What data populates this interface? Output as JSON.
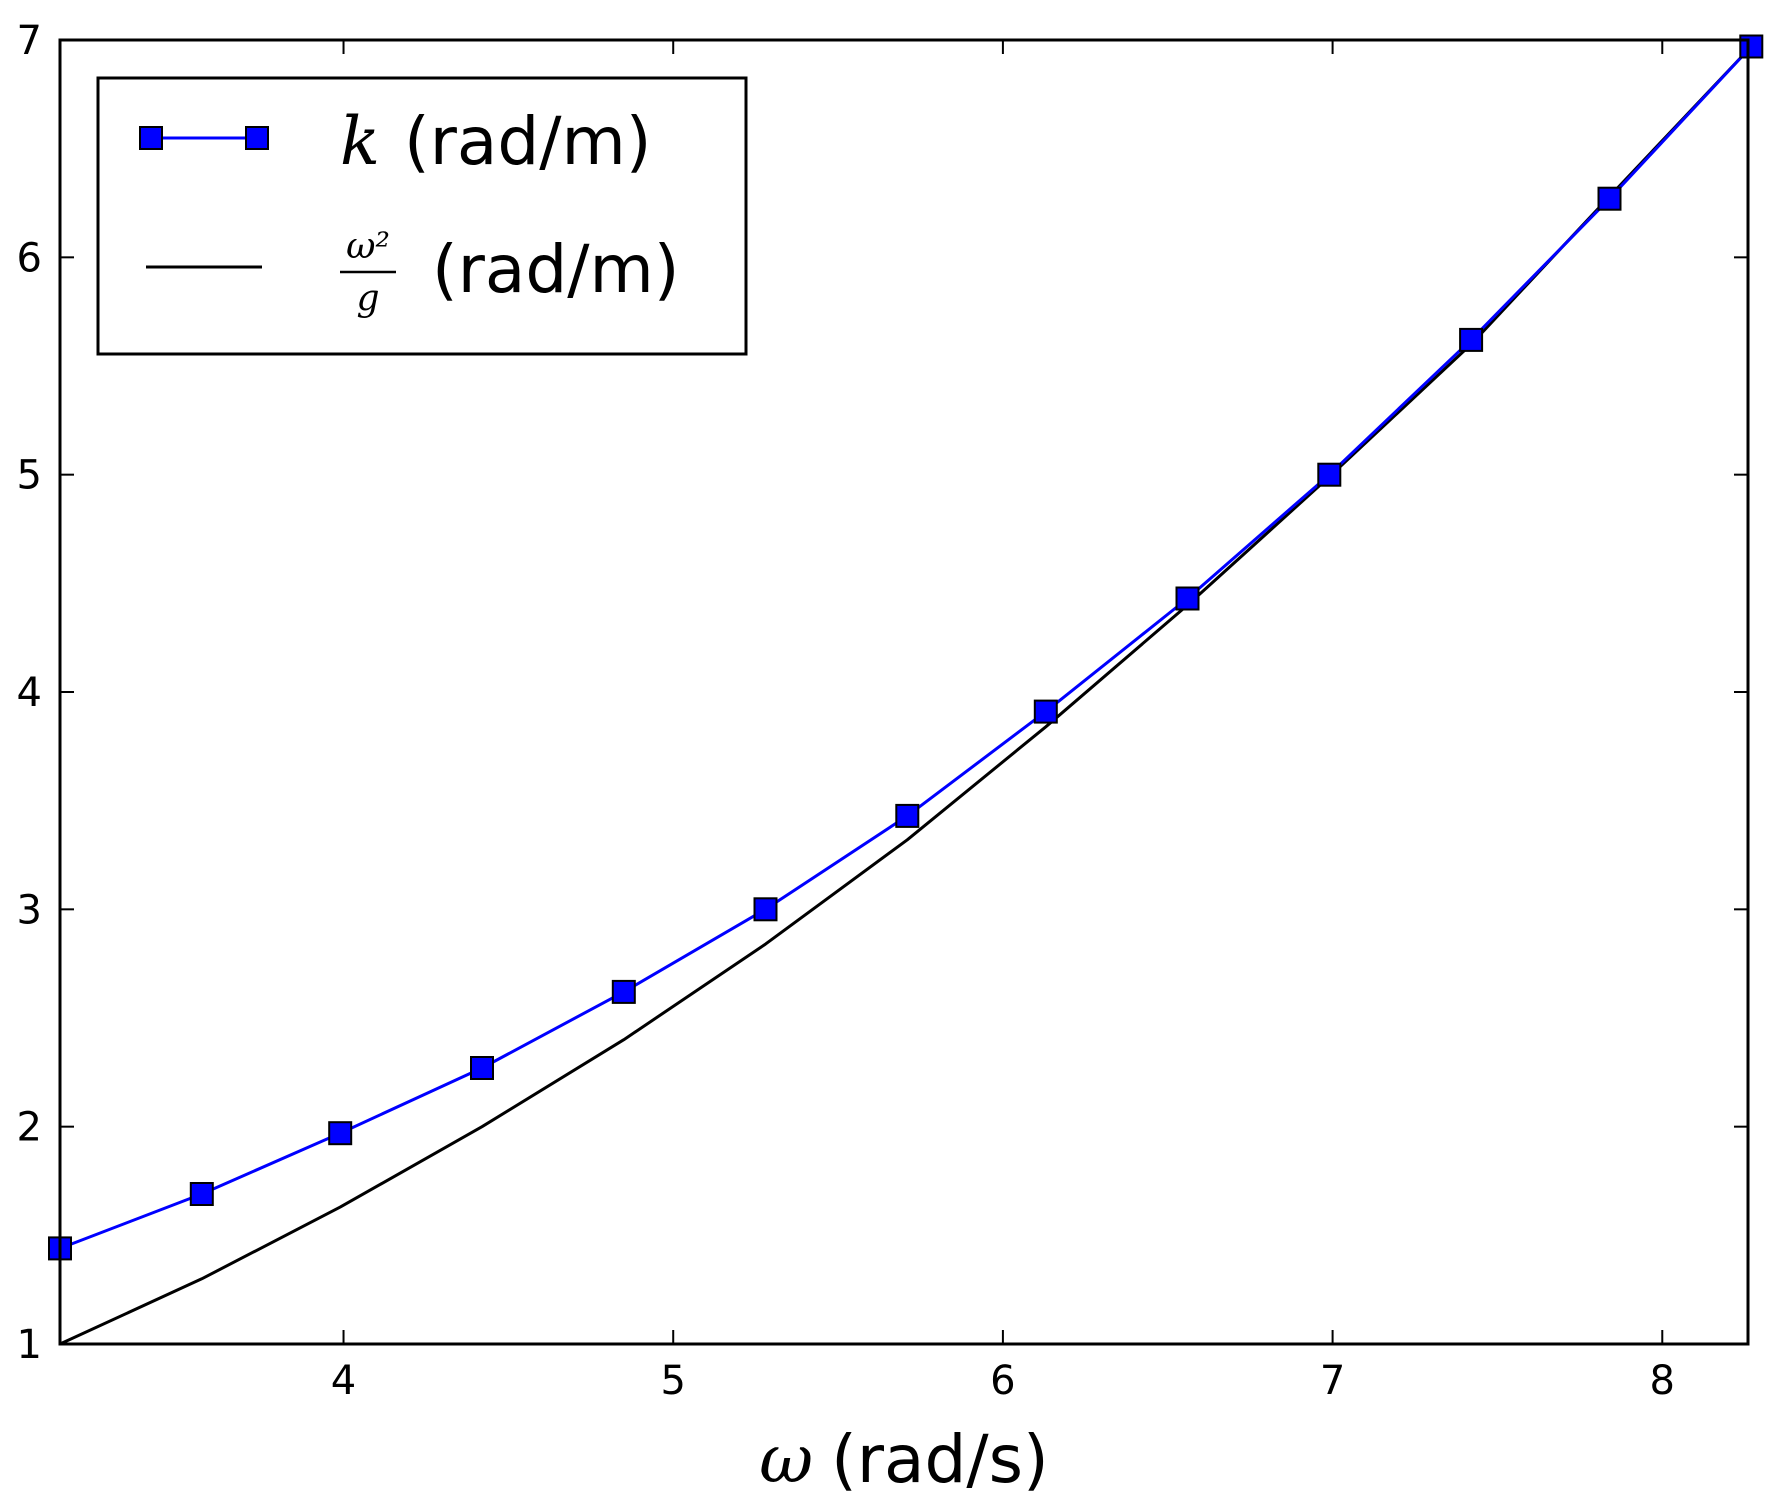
{
  "chart_data": {
    "type": "line",
    "xlabel": {
      "symbol": "ω",
      "unit": "(rad/s)"
    },
    "xlim": [
      3.14,
      8.26
    ],
    "ylim": [
      1,
      7
    ],
    "x_ticks": [
      4,
      5,
      6,
      7,
      8
    ],
    "y_ticks": [
      1,
      2,
      3,
      4,
      5,
      6,
      7
    ],
    "grid": false,
    "legend": "top-left",
    "series": [
      {
        "name": "k (rad/m)",
        "name_symbol": "k",
        "name_unit": "(rad/m)",
        "color": "#0000ff",
        "marker": "square",
        "x": [
          3.14,
          3.57,
          3.99,
          4.42,
          4.85,
          5.28,
          5.71,
          6.13,
          6.56,
          6.99,
          7.42,
          7.84,
          8.27
        ],
        "y": [
          1.44,
          1.69,
          1.97,
          2.27,
          2.62,
          3.0,
          3.43,
          3.91,
          4.43,
          5.0,
          5.62,
          6.27,
          6.97
        ]
      },
      {
        "name": "ω²/g (rad/m)",
        "name_numerator": "ω²",
        "name_denominator": "g",
        "name_unit": "(rad/m)",
        "color": "#000000",
        "marker": "none",
        "x": [
          3.14,
          3.57,
          3.99,
          4.42,
          4.85,
          5.28,
          5.71,
          6.13,
          6.56,
          6.99,
          7.42,
          7.84,
          8.27
        ],
        "y": [
          1.0,
          1.3,
          1.63,
          2.0,
          2.4,
          2.84,
          3.32,
          3.84,
          4.4,
          4.99,
          5.6,
          6.28,
          6.97
        ]
      }
    ]
  }
}
